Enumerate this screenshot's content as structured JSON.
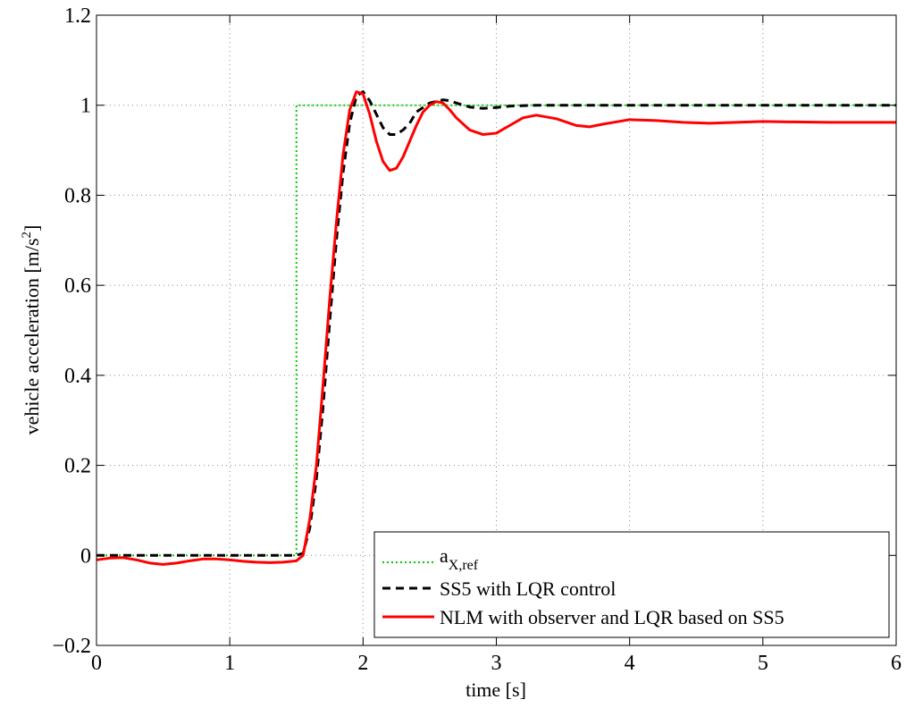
{
  "chart_data": {
    "type": "line",
    "title": "",
    "xlabel": "time [s]",
    "ylabel": "vehicle acceleration [m/s",
    "ylabel_sup": "2",
    "ylabel_end": "]",
    "xlim": [
      0,
      6
    ],
    "ylim": [
      -0.2,
      1.2
    ],
    "x_ticks": [
      0,
      1,
      2,
      3,
      4,
      5,
      6
    ],
    "x_tick_labels": [
      "0",
      "1",
      "2",
      "3",
      "4",
      "5",
      "6"
    ],
    "y_ticks": [
      -0.2,
      0,
      0.2,
      0.4,
      0.6,
      0.8,
      1.0,
      1.2
    ],
    "y_tick_labels": [
      "−0.2",
      "0",
      "0.2",
      "0.4",
      "0.6",
      "0.8",
      "1",
      "1.2"
    ],
    "grid": true,
    "legend_position": "bottom-right",
    "series": [
      {
        "name": "a",
        "name_sub": "X,ref",
        "color": "#00cc00",
        "style": "dotted",
        "x": [
          0,
          1.5,
          1.5,
          6
        ],
        "y": [
          0,
          0,
          1.0,
          1.0
        ]
      },
      {
        "name": "SS5 with LQR control",
        "color": "#000000",
        "style": "dashed",
        "x": [
          0,
          1.5,
          1.55,
          1.6,
          1.65,
          1.7,
          1.75,
          1.8,
          1.85,
          1.9,
          1.95,
          2.0,
          2.05,
          2.1,
          2.15,
          2.2,
          2.25,
          2.3,
          2.35,
          2.4,
          2.5,
          2.6,
          2.65,
          2.7,
          2.8,
          2.9,
          3.0,
          3.1,
          3.3,
          3.6,
          4.0,
          5.0,
          6.0
        ],
        "y": [
          0,
          0,
          0.005,
          0.06,
          0.17,
          0.33,
          0.52,
          0.7,
          0.85,
          0.96,
          1.02,
          1.03,
          1.01,
          0.98,
          0.95,
          0.935,
          0.935,
          0.945,
          0.96,
          0.985,
          1.005,
          1.012,
          1.01,
          1.005,
          0.996,
          0.993,
          0.995,
          0.998,
          1.0,
          1.0,
          1.0,
          1.0,
          1.0
        ]
      },
      {
        "name": "NLM with observer and LQR based on SS5",
        "color": "#ff0000",
        "style": "solid",
        "x": [
          0,
          0.1,
          0.2,
          0.3,
          0.4,
          0.5,
          0.6,
          0.7,
          0.8,
          0.9,
          1.0,
          1.1,
          1.2,
          1.3,
          1.4,
          1.5,
          1.55,
          1.6,
          1.65,
          1.7,
          1.75,
          1.8,
          1.85,
          1.9,
          1.95,
          2.0,
          2.05,
          2.1,
          2.15,
          2.2,
          2.25,
          2.3,
          2.35,
          2.4,
          2.45,
          2.5,
          2.55,
          2.6,
          2.65,
          2.7,
          2.8,
          2.9,
          3.0,
          3.1,
          3.2,
          3.3,
          3.45,
          3.6,
          3.7,
          3.8,
          4.0,
          4.2,
          4.4,
          4.6,
          4.8,
          5.0,
          5.2,
          5.5,
          5.8,
          6.0
        ],
        "y": [
          -0.01,
          -0.006,
          -0.005,
          -0.01,
          -0.017,
          -0.02,
          -0.017,
          -0.012,
          -0.008,
          -0.008,
          -0.01,
          -0.013,
          -0.015,
          -0.016,
          -0.015,
          -0.012,
          0.0,
          0.08,
          0.2,
          0.38,
          0.57,
          0.74,
          0.89,
          0.99,
          1.03,
          1.025,
          0.98,
          0.92,
          0.875,
          0.855,
          0.86,
          0.885,
          0.92,
          0.955,
          0.985,
          1.0,
          1.008,
          1.005,
          0.99,
          0.972,
          0.945,
          0.935,
          0.938,
          0.955,
          0.972,
          0.978,
          0.97,
          0.955,
          0.952,
          0.958,
          0.968,
          0.966,
          0.962,
          0.96,
          0.962,
          0.964,
          0.963,
          0.962,
          0.962,
          0.962
        ]
      }
    ]
  }
}
